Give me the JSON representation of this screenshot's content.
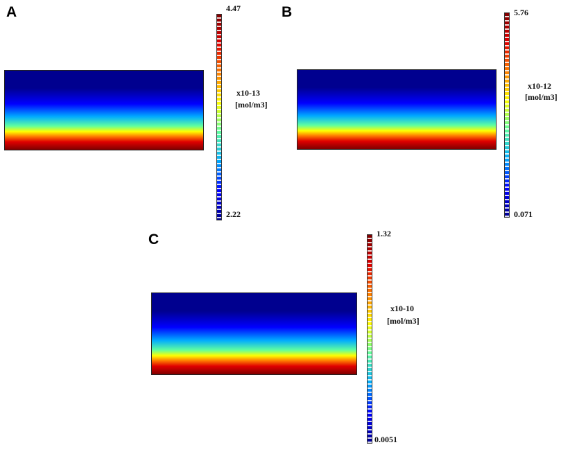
{
  "panels": [
    {
      "label": "A",
      "max": "4.47",
      "min": "2.22",
      "scale": "x10-13",
      "unit": "[mol/m3]"
    },
    {
      "label": "B",
      "max": "5.76",
      "min": "0.071",
      "scale": "x10-12",
      "unit": "[mol/m3]"
    },
    {
      "label": "C",
      "max": "1.32",
      "min": "0.0051",
      "scale": "x10-10",
      "unit": "[mol/m3]"
    }
  ],
  "colormap": [
    "#00008f",
    "#0000ff",
    "#00aaff",
    "#5fffa0",
    "#ffff00",
    "#ff8000",
    "#e00000",
    "#800000"
  ]
}
